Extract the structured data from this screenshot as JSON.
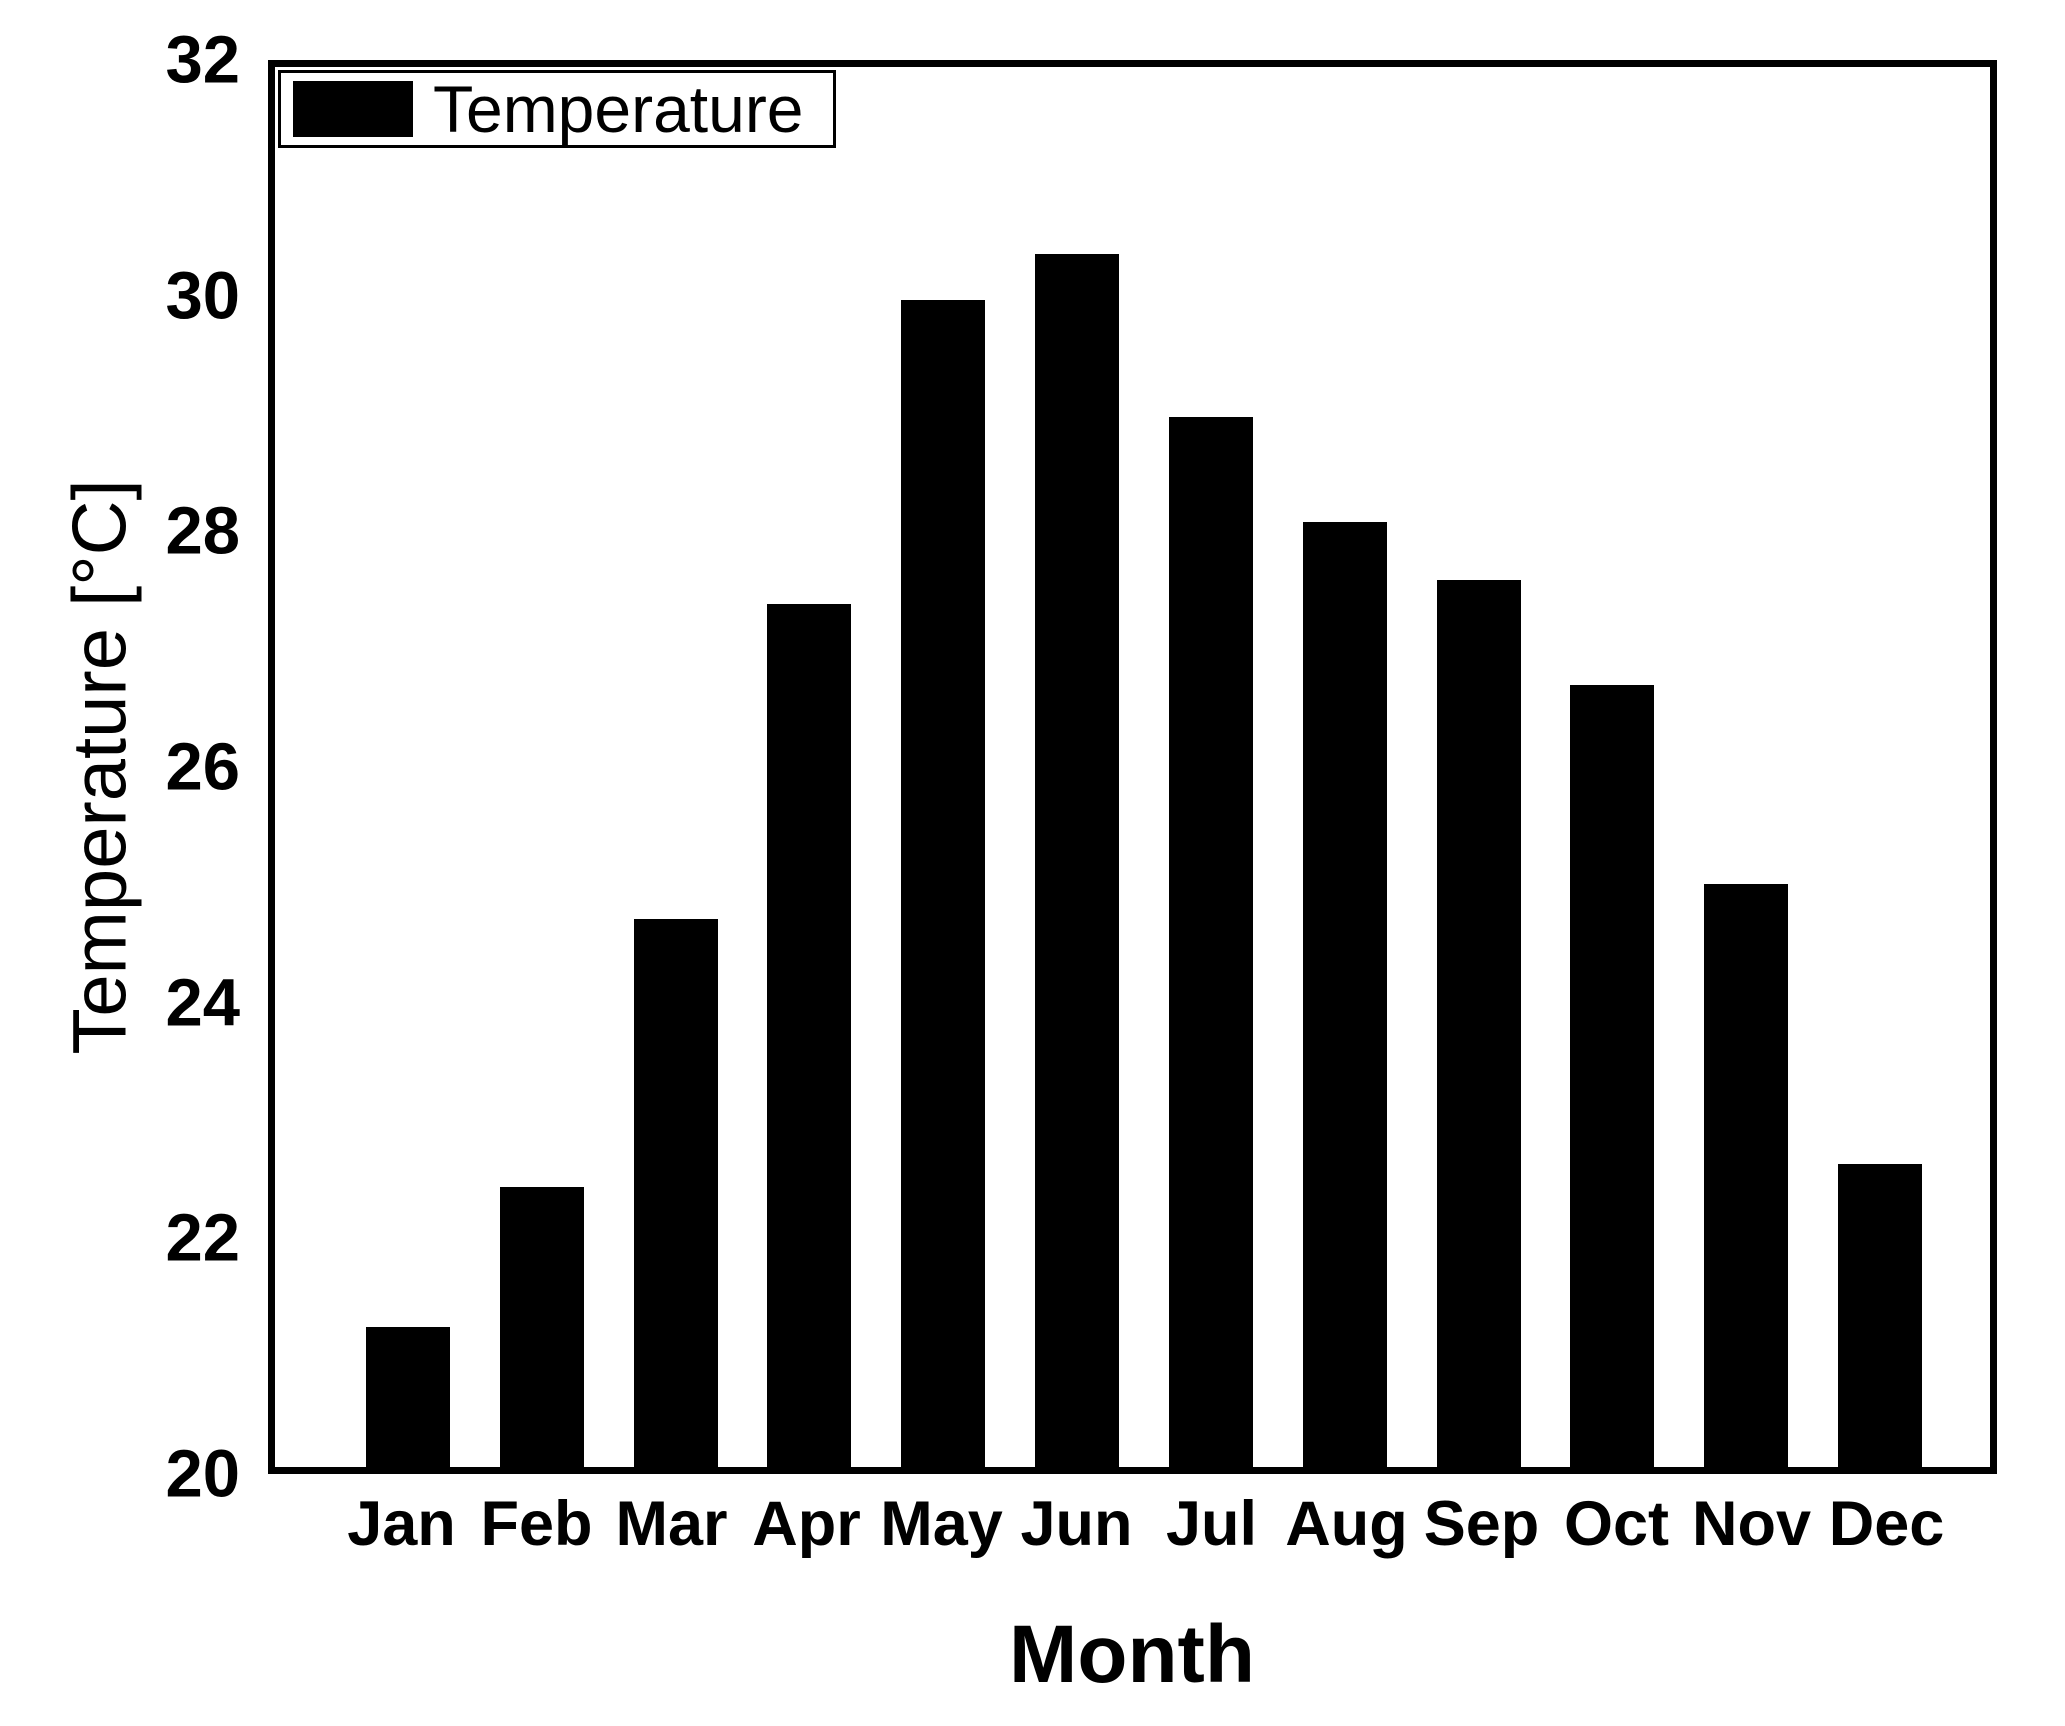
{
  "figure": {
    "background_color": "#ffffff",
    "foreground_color": "#000000"
  },
  "chart_data": {
    "type": "bar",
    "title": "",
    "xlabel": "Month",
    "ylabel": "Temperature [°C]",
    "categories": [
      "Jan",
      "Feb",
      "Mar",
      "Apr",
      "May",
      "Jun",
      "Jul",
      "Aug",
      "Sep",
      "Oct",
      "Nov",
      "Dec"
    ],
    "series": [
      {
        "name": "Temperature",
        "values": [
          21.2,
          22.4,
          24.7,
          27.4,
          30.0,
          30.4,
          29.0,
          28.1,
          27.6,
          26.7,
          25.0,
          22.6
        ]
      }
    ],
    "ylim": [
      20,
      32
    ],
    "yticks": [
      32,
      30,
      28,
      26,
      24,
      22,
      20
    ],
    "bar_color": "#000000",
    "grid": false,
    "legend": {
      "position": "upper-left",
      "entries": [
        {
          "label": "Temperature",
          "swatch_color": "#000000"
        }
      ]
    }
  }
}
